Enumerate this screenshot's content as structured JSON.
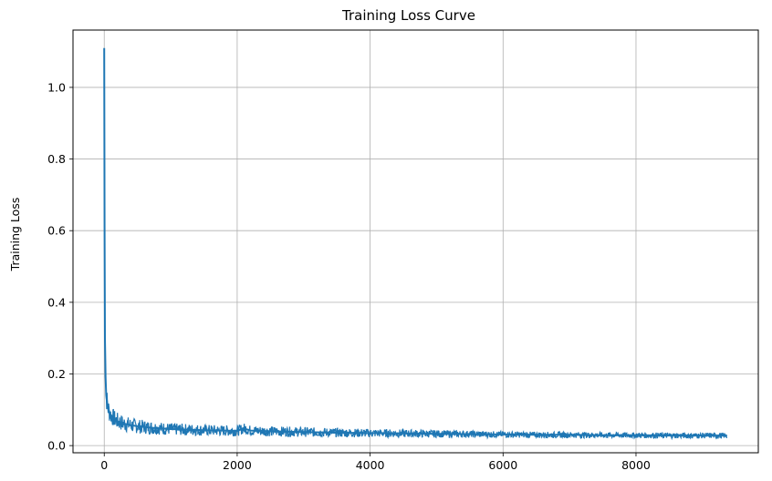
{
  "chart_data": {
    "type": "line",
    "title": "Training Loss Curve",
    "xlabel": "",
    "ylabel": "Training Loss",
    "xlim": [
      -470,
      9840
    ],
    "ylim": [
      -0.02,
      1.16
    ],
    "xticks": [
      0,
      2000,
      4000,
      6000,
      8000
    ],
    "yticks": [
      0.0,
      0.2,
      0.4,
      0.6,
      0.8,
      1.0
    ],
    "xtick_labels": [
      "0",
      "2000",
      "4000",
      "6000",
      "8000"
    ],
    "ytick_labels": [
      "0.0",
      "0.2",
      "0.4",
      "0.6",
      "0.8",
      "1.0"
    ],
    "grid": true,
    "legend": false,
    "color": "#1f77b4",
    "series": [
      {
        "x": [
          0,
          5,
          10,
          20,
          30,
          50,
          75,
          100,
          150,
          200,
          300,
          400,
          500,
          700,
          1000,
          1500,
          2000,
          2100,
          2200,
          2500,
          3000,
          3500,
          4000,
          4500,
          5000,
          5500,
          6000,
          6500,
          7000,
          7500,
          8000,
          8500,
          9000,
          9370
        ],
        "y": [
          1.11,
          0.6,
          0.3,
          0.19,
          0.14,
          0.11,
          0.095,
          0.085,
          0.075,
          0.068,
          0.061,
          0.057,
          0.054,
          0.05,
          0.046,
          0.043,
          0.041,
          0.048,
          0.042,
          0.04,
          0.038,
          0.036,
          0.035,
          0.034,
          0.033,
          0.032,
          0.031,
          0.03,
          0.03,
          0.029,
          0.029,
          0.028,
          0.028,
          0.028
        ]
      }
    ],
    "noise_band": {
      "x": [
        0,
        100,
        500,
        1000,
        2000,
        4000,
        6000,
        8000,
        9370
      ],
      "half_width": [
        0.04,
        0.025,
        0.02,
        0.017,
        0.015,
        0.012,
        0.009,
        0.008,
        0.008
      ]
    }
  }
}
